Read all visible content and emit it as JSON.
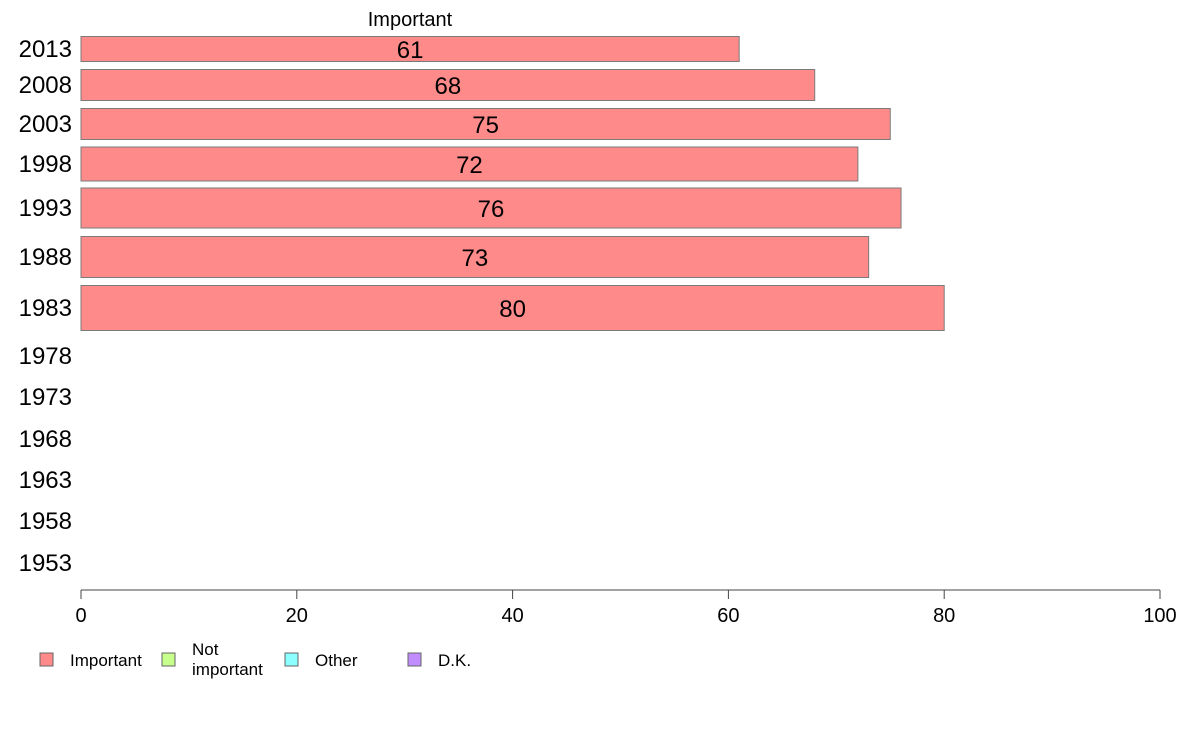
{
  "chart_data": {
    "type": "bar",
    "orientation": "horizontal",
    "header": "Important",
    "categories": [
      "2013",
      "2008",
      "2003",
      "1998",
      "1993",
      "1988",
      "1983",
      "1978",
      "1973",
      "1968",
      "1963",
      "1958",
      "1953"
    ],
    "series": [
      {
        "name": "Important",
        "color": "#ff8a8a",
        "values": [
          61,
          68,
          75,
          72,
          76,
          73,
          80,
          null,
          null,
          null,
          null,
          null,
          null
        ]
      },
      {
        "name": "Not important",
        "color": "#c6ff8c",
        "values": [
          null,
          null,
          null,
          null,
          null,
          null,
          null,
          null,
          null,
          null,
          null,
          null,
          null
        ]
      },
      {
        "name": "Other",
        "color": "#8cffff",
        "values": [
          null,
          null,
          null,
          null,
          null,
          null,
          null,
          null,
          null,
          null,
          null,
          null,
          null
        ]
      },
      {
        "name": "D.K.",
        "color": "#c08cff",
        "values": [
          null,
          null,
          null,
          null,
          null,
          null,
          null,
          null,
          null,
          null,
          null,
          null,
          null
        ]
      }
    ],
    "xlim": [
      0,
      100
    ],
    "xticks": [
      0,
      20,
      40,
      60,
      80,
      100
    ],
    "grid": false,
    "legend_position": "bottom-left"
  },
  "legend": {
    "items": [
      {
        "label_lines": [
          "Important"
        ],
        "color": "#ff8a8a"
      },
      {
        "label_lines": [
          "Not",
          "important"
        ],
        "color": "#c6ff8c"
      },
      {
        "label_lines": [
          "Other"
        ],
        "color": "#8cffff"
      },
      {
        "label_lines": [
          "D.K."
        ],
        "color": "#c08cff"
      }
    ]
  }
}
